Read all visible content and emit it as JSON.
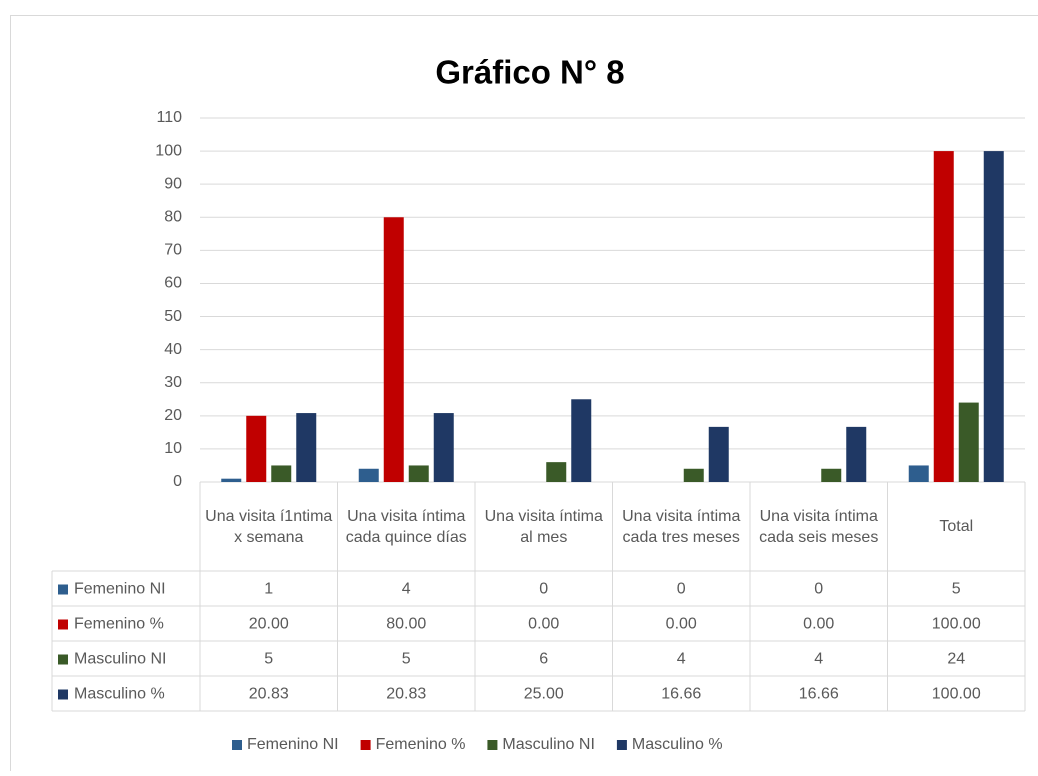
{
  "chart_data": {
    "type": "bar",
    "title": "Gráfico N° 8",
    "categories": [
      "Una visita í1ntima x semana",
      "Una visita íntima cada quince días",
      "Una visita íntima al mes",
      "Una visita íntima cada tres meses",
      "Una visita íntima cada seis meses",
      "Total"
    ],
    "series": [
      {
        "name": "Femenino NI",
        "color": "#2e5e8e",
        "values": [
          1,
          4,
          0,
          0,
          0,
          5
        ]
      },
      {
        "name": "Femenino %",
        "color": "#c00000",
        "values": [
          20,
          80,
          0,
          0,
          0,
          100
        ],
        "value_labels": [
          "20.00",
          "80.00",
          "0.00",
          "0.00",
          "0.00",
          "100.00"
        ]
      },
      {
        "name": "Masculino NI",
        "color": "#3a5a28",
        "values": [
          5,
          5,
          6,
          4,
          4,
          24
        ]
      },
      {
        "name": "Masculino %",
        "color": "#1f3864",
        "values": [
          20.83,
          20.83,
          25,
          16.66,
          16.66,
          100
        ],
        "value_labels": [
          "20.83",
          "20.83",
          "25.00",
          "16.66",
          "16.66",
          "100.00"
        ]
      }
    ],
    "ylim": [
      0,
      110
    ],
    "yticks": [
      0,
      10,
      20,
      30,
      40,
      50,
      60,
      70,
      80,
      90,
      100,
      110
    ],
    "grid": true,
    "legend": "bottom"
  }
}
